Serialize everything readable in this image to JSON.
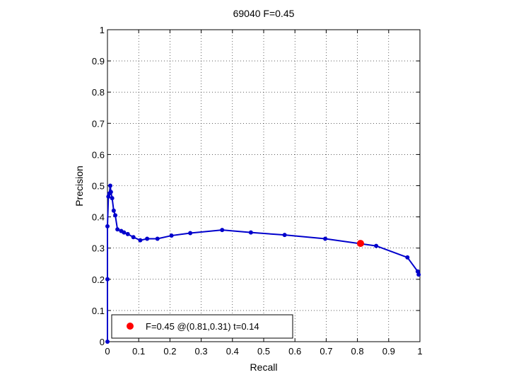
{
  "chart_data": {
    "type": "line",
    "title": "69040 F=0.45",
    "xlabel": "Recall",
    "ylabel": "Precision",
    "xlim": [
      0,
      1
    ],
    "ylim": [
      0,
      1
    ],
    "grid": true,
    "xticks": [
      "0",
      "0.1",
      "0.2",
      "0.3",
      "0.4",
      "0.5",
      "0.6",
      "0.7",
      "0.8",
      "0.9",
      "1"
    ],
    "yticks": [
      "0",
      "0.1",
      "0.2",
      "0.3",
      "0.4",
      "0.5",
      "0.6",
      "0.7",
      "0.8",
      "0.9",
      "1"
    ],
    "series": [
      {
        "color": "#0000cc",
        "x": [
          0.0,
          0.0,
          0.0,
          0.003,
          0.006,
          0.009,
          0.011,
          0.015,
          0.02,
          0.025,
          0.032,
          0.044,
          0.053,
          0.065,
          0.083,
          0.105,
          0.127,
          0.16,
          0.205,
          0.265,
          0.367,
          0.459,
          0.567,
          0.697,
          0.86,
          0.96,
          0.993,
          0.996
        ],
        "y": [
          0.0,
          0.2,
          0.37,
          0.465,
          0.475,
          0.5,
          0.48,
          0.46,
          0.42,
          0.405,
          0.36,
          0.355,
          0.35,
          0.345,
          0.335,
          0.325,
          0.33,
          0.33,
          0.34,
          0.348,
          0.358,
          0.35,
          0.342,
          0.33,
          0.307,
          0.27,
          0.225,
          0.215
        ]
      }
    ],
    "highlight": {
      "x": 0.81,
      "y": 0.315,
      "color": "#ff0000"
    },
    "legend": {
      "position": "bottom-left",
      "text": "F=0.45 @(0.81,0.31) t=0.14"
    }
  }
}
